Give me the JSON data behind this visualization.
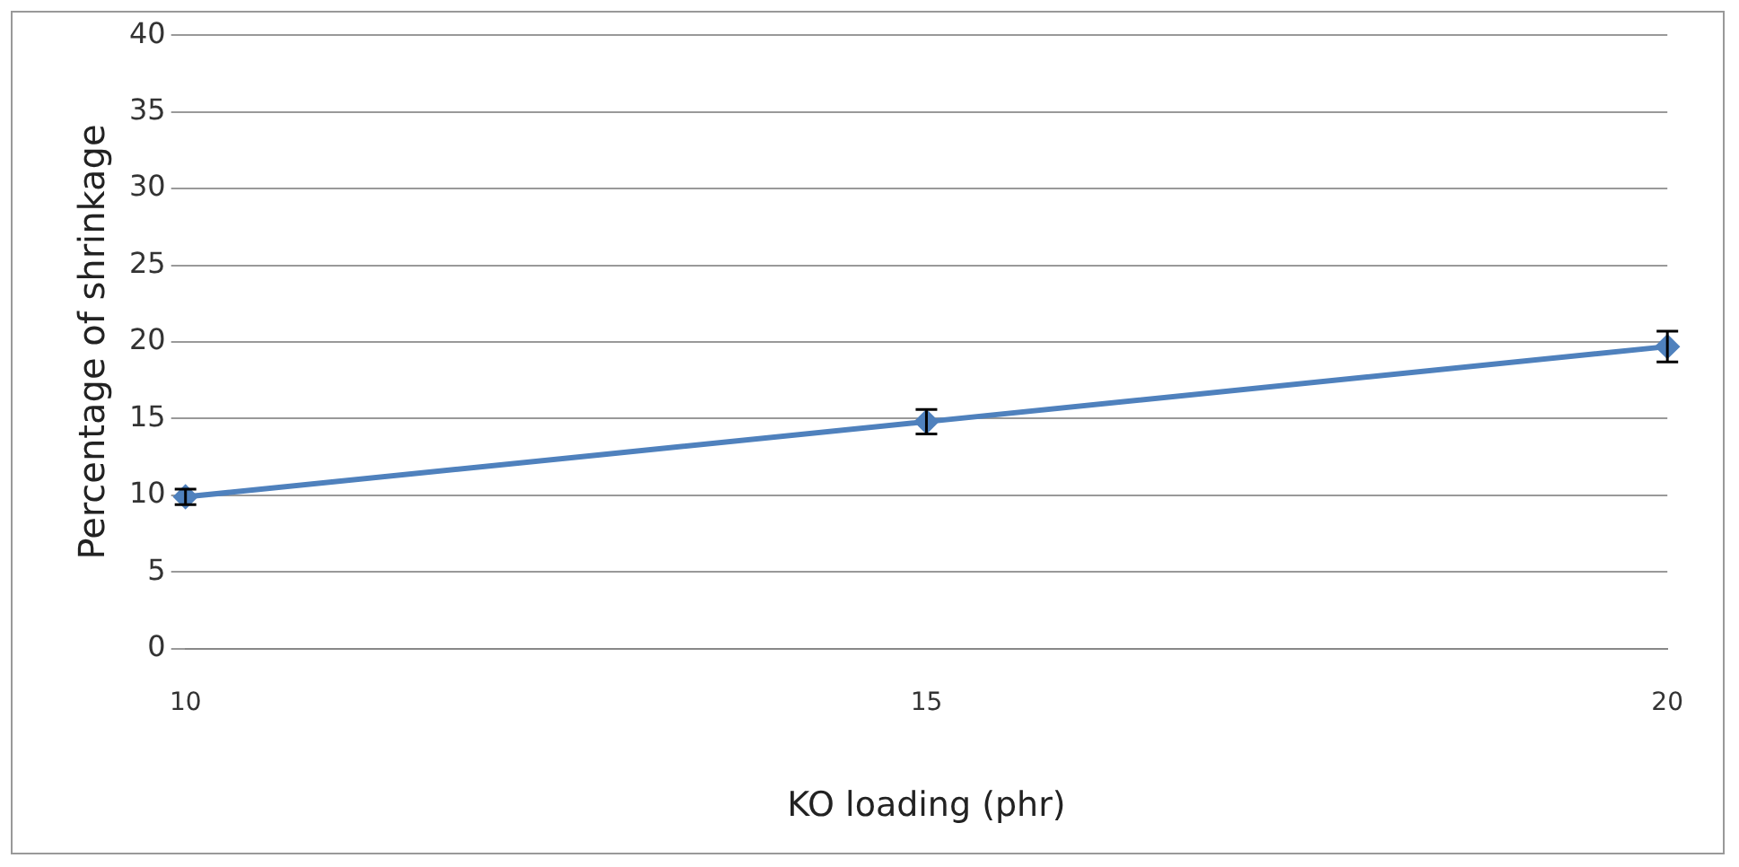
{
  "chart_data": {
    "type": "line",
    "xlabel": "KO loading (phr)",
    "ylabel": "Percentage of shrinkage",
    "categories": [
      "10",
      "15",
      "20"
    ],
    "series": [
      {
        "color": "#4f81bd",
        "values": [
          9.9,
          14.8,
          19.7
        ],
        "errors": [
          0.5,
          0.8,
          1.0
        ]
      }
    ],
    "ylim": [
      0,
      40
    ],
    "yticks": [
      0,
      5,
      10,
      15,
      20,
      25,
      30,
      35,
      40
    ],
    "grid": "y",
    "legend": false,
    "marker": "diamond",
    "line_style": "solid"
  }
}
